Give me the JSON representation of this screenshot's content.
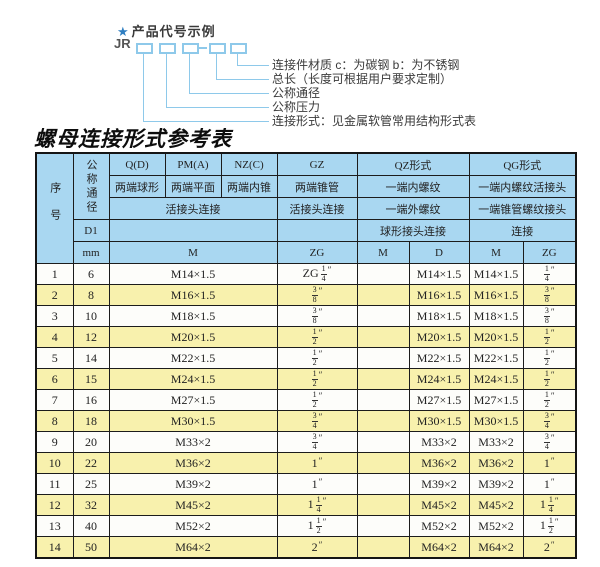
{
  "diagram": {
    "star": "★",
    "title": "产品代号示例",
    "code": "JR",
    "labels": [
      "连接件材质  c：为碳钢  b：为不锈钢",
      "总长（长度可根据用户要求定制）",
      "公称通径",
      "公称压力",
      "连接形式：见金属软管常用结构形式表"
    ]
  },
  "title": "螺母连接形式参考表",
  "table": {
    "header": {
      "seq": "序号",
      "dn": "公称通径",
      "d1": "D1",
      "mm": "mm",
      "col_q": "Q(D)",
      "col_pm": "PM(A)",
      "col_nz": "NZ(C)",
      "col_gz": "GZ",
      "col_qz": "QZ形式",
      "col_qg": "QG形式",
      "sub_q": "两端球形",
      "sub_pm": "两端平面",
      "sub_nz": "两端内锥",
      "sub_gz": "两端锥管",
      "sub_qz": "一端内螺纹",
      "sub_qg": "一端内螺纹活接头",
      "conn_qpn": "活接头连接",
      "conn_gz": "活接头连接",
      "sub2_qz": "一端外螺纹",
      "sub2_qg": "一端锥管螺纹接头",
      "conn_qz": "球形接头连接",
      "conn_qg": "连接",
      "unit_m": "M",
      "unit_zg": "ZG",
      "unit_qz_m": "M",
      "unit_qz_d": "D",
      "unit_qg_m": "M",
      "unit_qg_zg": "ZG"
    },
    "rows": [
      {
        "seq": "1",
        "dn": "6",
        "m": "M14×1.5",
        "gz": "ZG 1/4″",
        "qz_m": "",
        "qz_d": "M14×1.5",
        "qg_m": "M14×1.5",
        "qg_zg": "1/4″"
      },
      {
        "seq": "2",
        "dn": "8",
        "m": "M16×1.5",
        "gz": "3/8″",
        "qz_m": "",
        "qz_d": "M16×1.5",
        "qg_m": "M16×1.5",
        "qg_zg": "3/8″"
      },
      {
        "seq": "3",
        "dn": "10",
        "m": "M18×1.5",
        "gz": "3/8″",
        "qz_m": "",
        "qz_d": "M18×1.5",
        "qg_m": "M18×1.5",
        "qg_zg": "3/8″"
      },
      {
        "seq": "4",
        "dn": "12",
        "m": "M20×1.5",
        "gz": "1/2″",
        "qz_m": "",
        "qz_d": "M20×1.5",
        "qg_m": "M20×1.5",
        "qg_zg": "1/2″"
      },
      {
        "seq": "5",
        "dn": "14",
        "m": "M22×1.5",
        "gz": "1/2″",
        "qz_m": "",
        "qz_d": "M22×1.5",
        "qg_m": "M22×1.5",
        "qg_zg": "1/2″"
      },
      {
        "seq": "6",
        "dn": "15",
        "m": "M24×1.5",
        "gz": "1/2″",
        "qz_m": "",
        "qz_d": "M24×1.5",
        "qg_m": "M24×1.5",
        "qg_zg": "1/2″"
      },
      {
        "seq": "7",
        "dn": "16",
        "m": "M27×1.5",
        "gz": "1/2″",
        "qz_m": "",
        "qz_d": "M27×1.5",
        "qg_m": "M27×1.5",
        "qg_zg": "1/2″"
      },
      {
        "seq": "8",
        "dn": "18",
        "m": "M30×1.5",
        "gz": "3/4″",
        "qz_m": "",
        "qz_d": "M30×1.5",
        "qg_m": "M30×1.5",
        "qg_zg": "3/4″"
      },
      {
        "seq": "9",
        "dn": "20",
        "m": "M33×2",
        "gz": "3/4″",
        "qz_m": "",
        "qz_d": "M33×2",
        "qg_m": "M33×2",
        "qg_zg": "3/4″"
      },
      {
        "seq": "10",
        "dn": "22",
        "m": "M36×2",
        "gz": "1″",
        "qz_m": "",
        "qz_d": "M36×2",
        "qg_m": "M36×2",
        "qg_zg": "1″"
      },
      {
        "seq": "11",
        "dn": "25",
        "m": "M39×2",
        "gz": "1″",
        "qz_m": "",
        "qz_d": "M39×2",
        "qg_m": "M39×2",
        "qg_zg": "1″"
      },
      {
        "seq": "12",
        "dn": "32",
        "m": "M45×2",
        "gz": "1 1/4″",
        "qz_m": "",
        "qz_d": "M45×2",
        "qg_m": "M45×2",
        "qg_zg": "1 1/4″"
      },
      {
        "seq": "13",
        "dn": "40",
        "m": "M52×2",
        "gz": "1 1/2″",
        "qz_m": "",
        "qz_d": "M52×2",
        "qg_m": "M52×2",
        "qg_zg": "1 1/2″"
      },
      {
        "seq": "14",
        "dn": "50",
        "m": "M64×2",
        "gz": "2″",
        "qz_m": "",
        "qz_d": "M64×2",
        "qg_m": "M64×2",
        "qg_zg": "2″"
      }
    ]
  },
  "colors": {
    "header_bg": "#a9d7f1",
    "alt_row_bg": "#f8f1ad",
    "diagram_line": "#8ec9ea",
    "star_blue": "#2e7ec1"
  }
}
